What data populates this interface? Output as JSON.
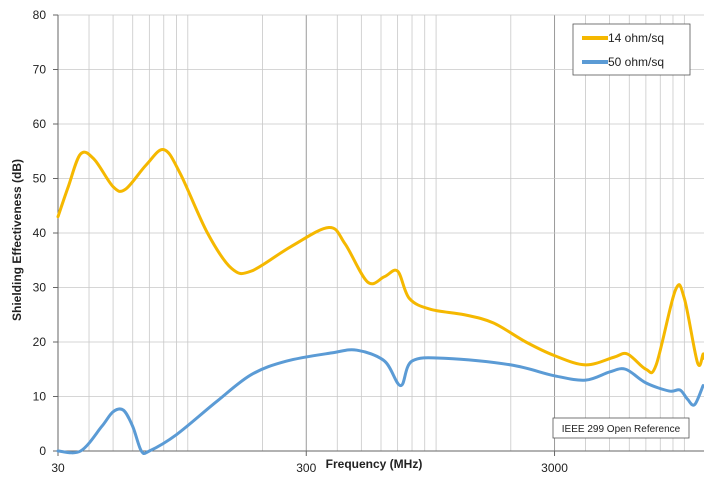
{
  "chart_data": {
    "type": "line",
    "title": "",
    "xlabel": "Frequency (MHz)",
    "ylabel": "Shielding Effectiveness (dB)",
    "x_scale": "log",
    "xlim": [
      30,
      12000
    ],
    "ylim": [
      0,
      80
    ],
    "x_ticks": [
      30,
      300,
      3000
    ],
    "x_tick_labels": [
      "30",
      "300",
      "3000"
    ],
    "y_ticks": [
      0,
      10,
      20,
      30,
      40,
      50,
      60,
      70,
      80
    ],
    "y_tick_labels": [
      "0",
      "10",
      "20",
      "30",
      "40",
      "50",
      "60",
      "70",
      "80"
    ],
    "grid": true,
    "legend_position": "top-right",
    "annotation": "IEEE 299 Open Reference",
    "series": [
      {
        "name": "14 ohm/sq",
        "color": "#f5b800",
        "points": [
          [
            30,
            43
          ],
          [
            33,
            48.5
          ],
          [
            37,
            54.5
          ],
          [
            42,
            53.5
          ],
          [
            50,
            48.5
          ],
          [
            56,
            48
          ],
          [
            68,
            52.5
          ],
          [
            80,
            55.3
          ],
          [
            93,
            51
          ],
          [
            120,
            40
          ],
          [
            150,
            33.5
          ],
          [
            180,
            33
          ],
          [
            260,
            37.5
          ],
          [
            370,
            41
          ],
          [
            430,
            38
          ],
          [
            530,
            31
          ],
          [
            620,
            32
          ],
          [
            700,
            33
          ],
          [
            780,
            28
          ],
          [
            950,
            26
          ],
          [
            1300,
            25
          ],
          [
            1700,
            23.5
          ],
          [
            2300,
            20
          ],
          [
            3000,
            17.5
          ],
          [
            4000,
            15.8
          ],
          [
            5200,
            17.2
          ],
          [
            5900,
            17.8
          ],
          [
            7000,
            15
          ],
          [
            7700,
            15.8
          ],
          [
            9200,
            29.5
          ],
          [
            10000,
            28
          ],
          [
            11300,
            16.2
          ],
          [
            11900,
            17.8
          ],
          [
            12000,
            17
          ]
        ]
      },
      {
        "name": "50 ohm/sq",
        "color": "#5b9bd5",
        "points": [
          [
            30,
            0
          ],
          [
            37,
            0
          ],
          [
            45,
            4.5
          ],
          [
            50,
            7.2
          ],
          [
            55,
            7.5
          ],
          [
            60,
            4.5
          ],
          [
            65,
            0
          ],
          [
            70,
            0
          ],
          [
            90,
            3
          ],
          [
            130,
            9
          ],
          [
            180,
            14
          ],
          [
            250,
            16.5
          ],
          [
            380,
            18
          ],
          [
            480,
            18.5
          ],
          [
            620,
            16.5
          ],
          [
            720,
            12
          ],
          [
            800,
            16.5
          ],
          [
            1100,
            17
          ],
          [
            2000,
            15.8
          ],
          [
            3000,
            13.8
          ],
          [
            4000,
            13
          ],
          [
            5000,
            14.5
          ],
          [
            5800,
            15
          ],
          [
            7000,
            12.5
          ],
          [
            8700,
            11
          ],
          [
            9600,
            11.2
          ],
          [
            10300,
            9.5
          ],
          [
            11000,
            8.5
          ],
          [
            11900,
            12
          ]
        ]
      }
    ]
  }
}
